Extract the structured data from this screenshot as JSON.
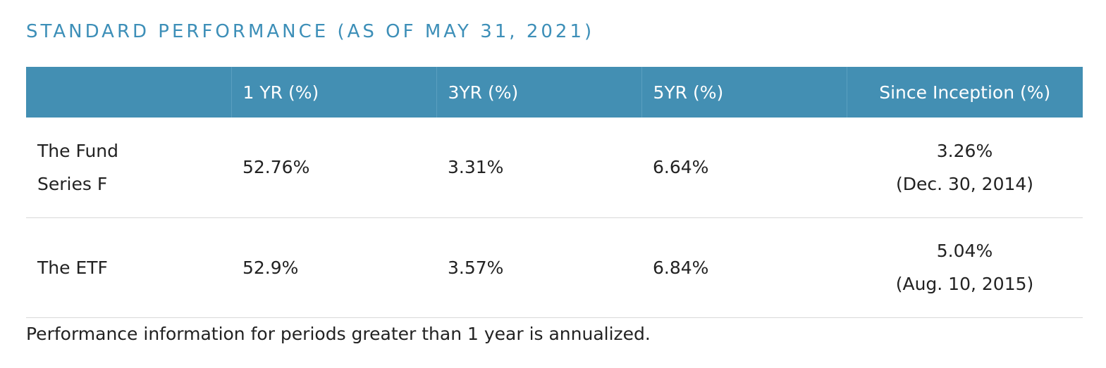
{
  "title": "STANDARD PERFORMANCE (AS OF MAY 31, 2021)",
  "header_color": "#438fb3",
  "title_color": "#3d8fb8",
  "table": {
    "columns": [
      "",
      "1 YR (%)",
      "3YR (%)",
      "5YR (%)",
      "Since Inception (%)"
    ],
    "rows": [
      {
        "name_line1": "The Fund",
        "name_line2": "Series F",
        "yr1": "52.76%",
        "yr3": "3.31%",
        "yr5": "6.64%",
        "since_value": "3.26%",
        "since_date": "(Dec. 30, 2014)"
      },
      {
        "name_line1": "The ETF",
        "name_line2": "",
        "yr1": "52.9%",
        "yr3": "3.57%",
        "yr5": "6.84%",
        "since_value": "5.04%",
        "since_date": "(Aug. 10, 2015)"
      }
    ]
  },
  "footnote": "Performance information for periods greater than 1 year is annualized."
}
